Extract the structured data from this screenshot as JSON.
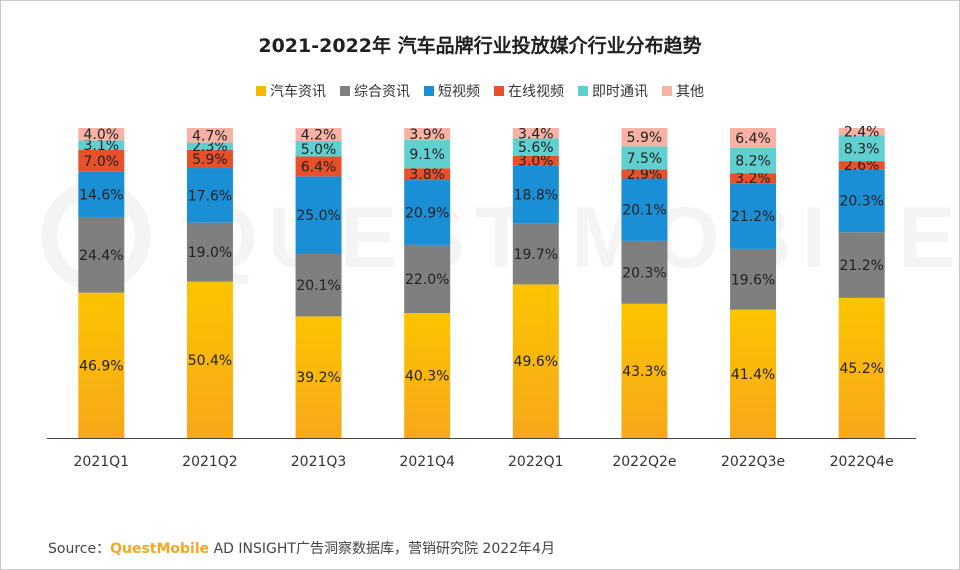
{
  "chart_data": {
    "type": "bar",
    "stacked": true,
    "title": "2021-2022年 汽车品牌行业投放媒介行业分布趋势",
    "categories": [
      "2021Q1",
      "2021Q2",
      "2021Q3",
      "2021Q4",
      "2022Q1",
      "2022Q2e",
      "2022Q3e",
      "2022Q4e"
    ],
    "series": [
      {
        "name": "汽车资讯",
        "color": "#f9b800",
        "values": [
          46.9,
          50.4,
          39.2,
          40.3,
          49.6,
          43.3,
          41.4,
          45.2
        ]
      },
      {
        "name": "综合资讯",
        "color": "#7f7f7f",
        "values": [
          24.4,
          19.0,
          20.1,
          22.0,
          19.7,
          20.3,
          19.6,
          21.2
        ]
      },
      {
        "name": "短视频",
        "color": "#1a8fd6",
        "values": [
          14.6,
          17.6,
          25.0,
          20.9,
          18.8,
          20.1,
          21.2,
          20.3
        ]
      },
      {
        "name": "在线视频",
        "color": "#e8502a",
        "values": [
          7.0,
          5.9,
          6.4,
          3.8,
          3.0,
          2.9,
          3.2,
          2.6
        ]
      },
      {
        "name": "即时通讯",
        "color": "#5fcfcf",
        "values": [
          3.1,
          2.3,
          5.0,
          9.1,
          5.6,
          7.5,
          8.2,
          8.3
        ]
      },
      {
        "name": "其他",
        "color": "#f7b2a5",
        "values": [
          4.0,
          4.7,
          4.2,
          3.9,
          3.4,
          5.9,
          6.4,
          2.4
        ]
      }
    ],
    "value_suffix": "%",
    "legend_position": "top-center",
    "grid": false,
    "ylim": [
      0,
      100
    ]
  },
  "footer": {
    "source_label": "Source：",
    "source_brand": "QuestMobile",
    "source_text": " AD INSIGHT广告洞察数据库，营销研究院 2022年4月"
  },
  "watermark": {
    "text": "QUEST MOBILE"
  }
}
